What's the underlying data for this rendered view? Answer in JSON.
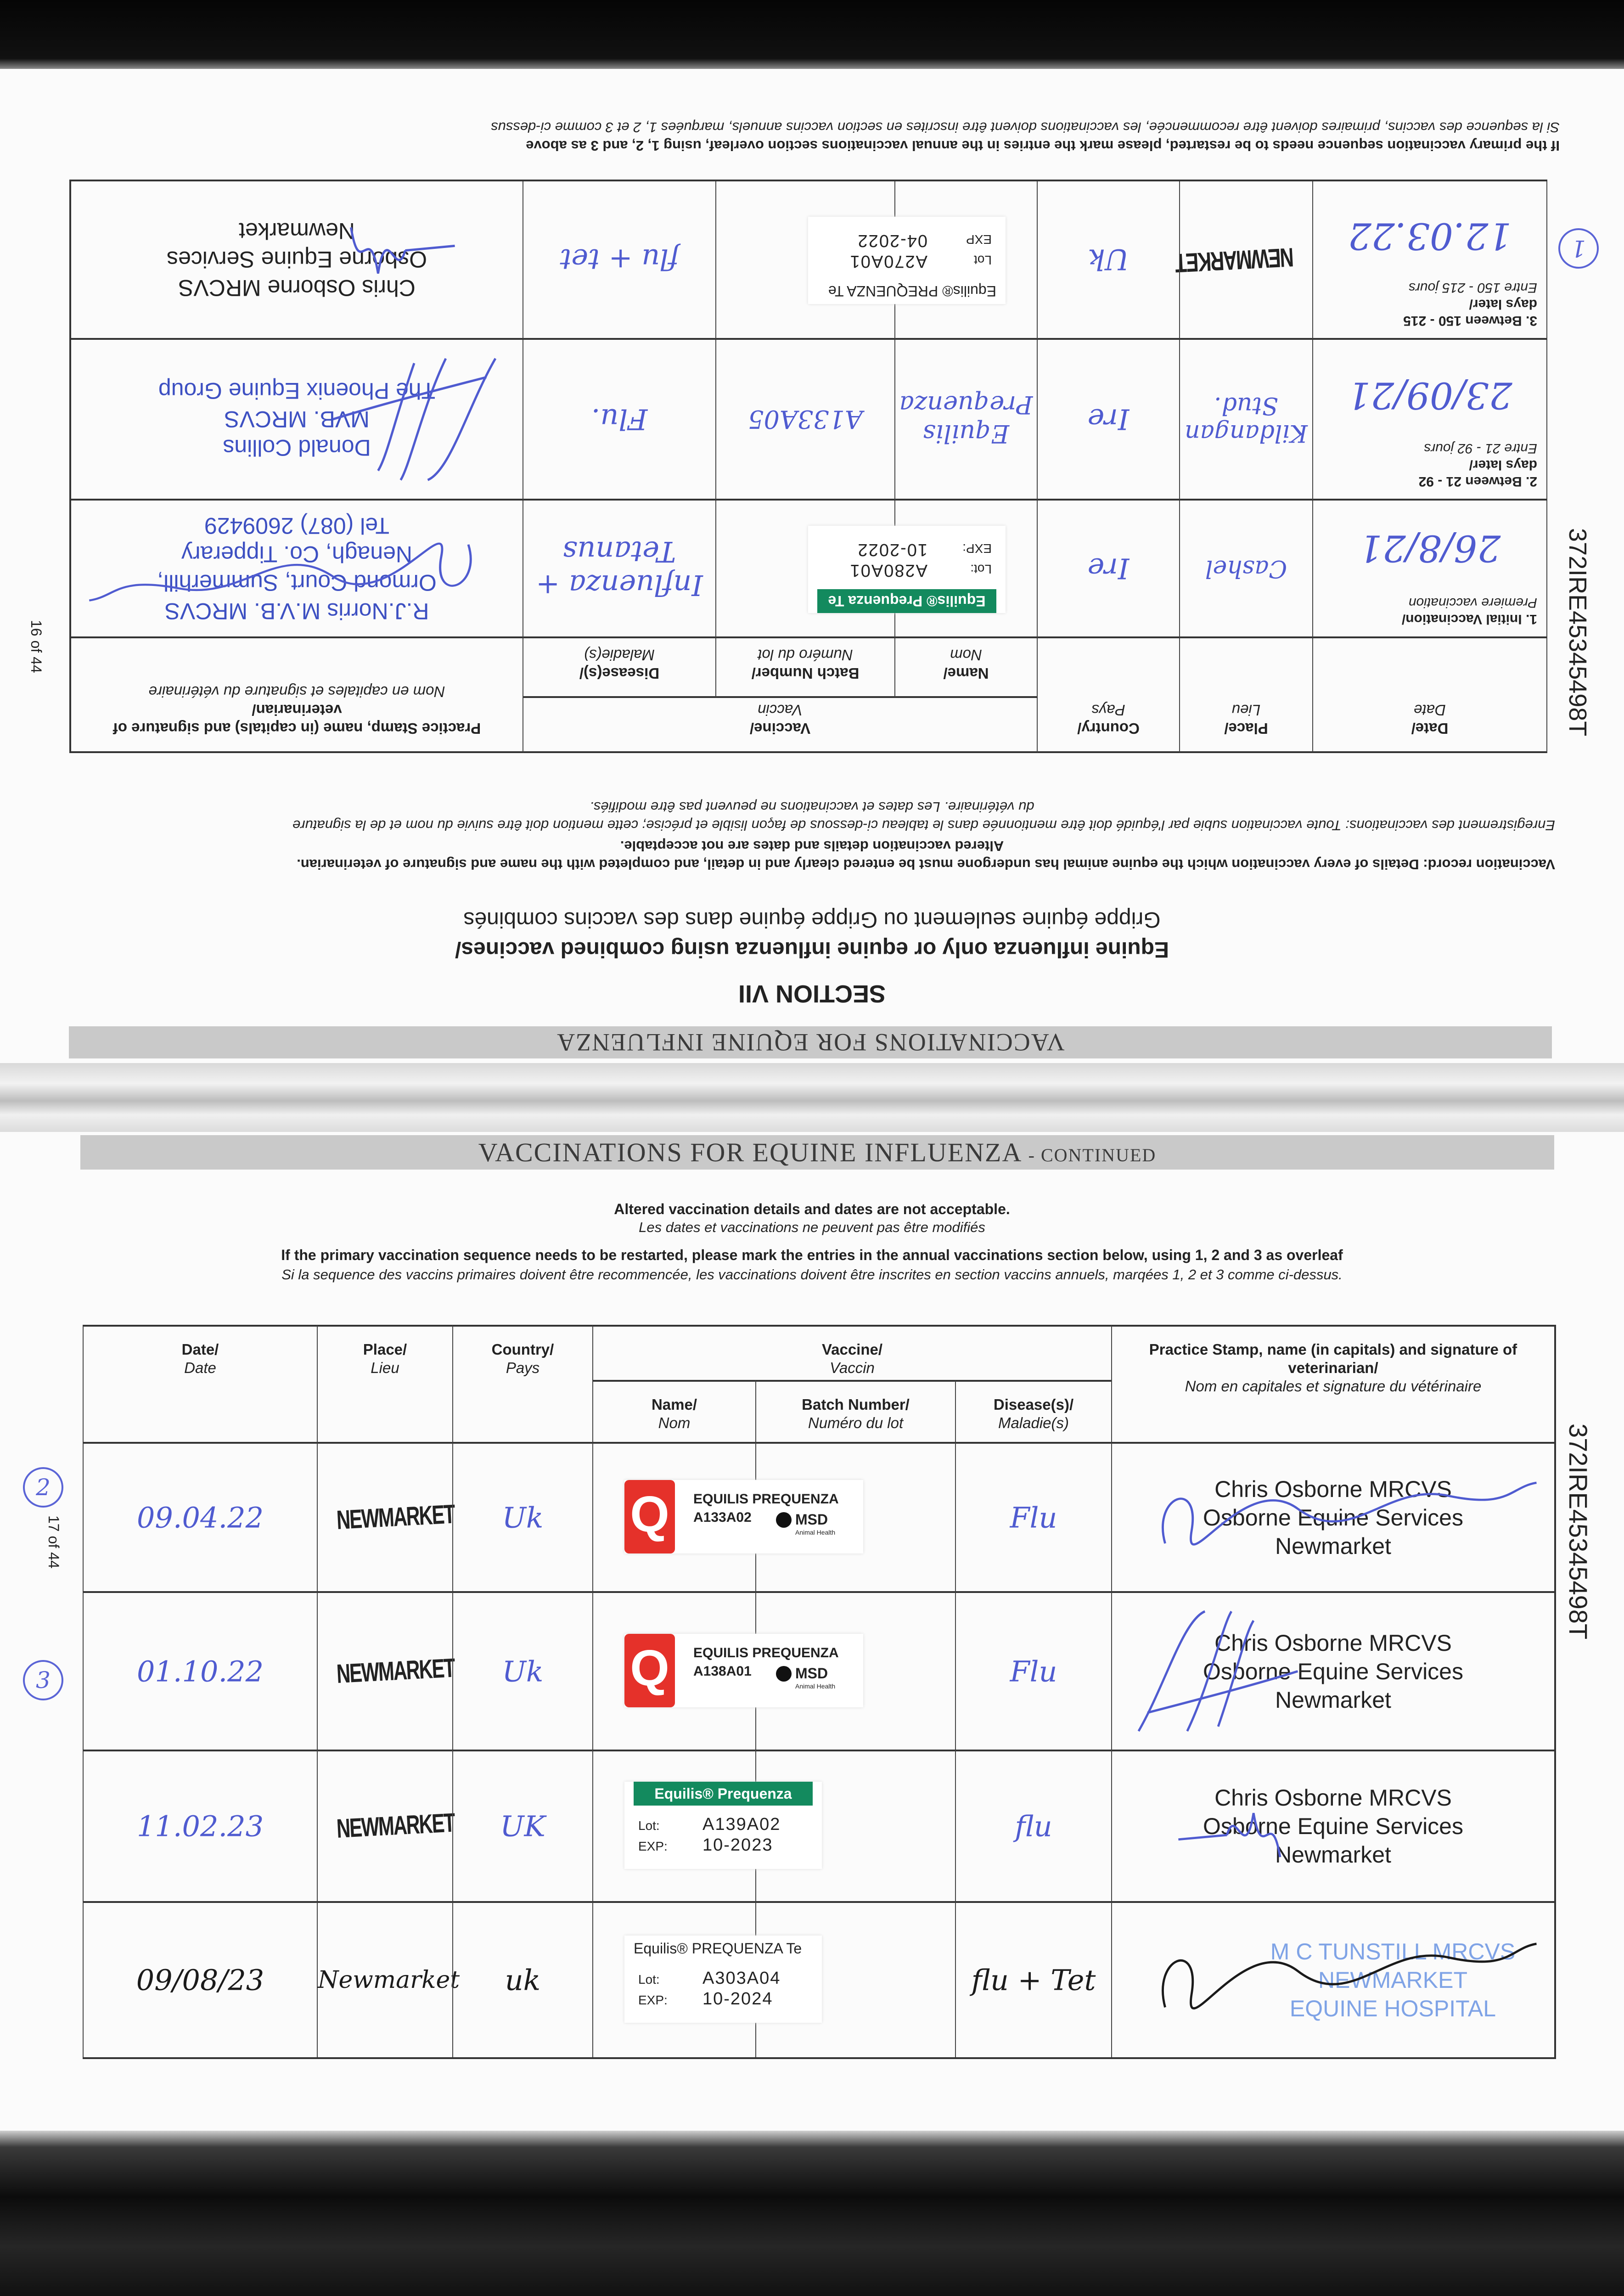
{
  "document": {
    "ink_blue": "#4f5bd0",
    "ink_black": "#1a1a1a",
    "banner_gray": "#c9c9c9"
  },
  "top_page": {
    "banner": "VACCINATIONS FOR EQUINE INFLUENZA",
    "section": "SECTION VII",
    "title": "Equine influenza only or equine influenza using combined vaccines/",
    "title_fr": "Grippe équine seulement ou Grippe équine dans des vaccins combinés",
    "record_en": "Vaccination record: Details of every vaccination which the equine animal has undergone must be entered clearly and in detail, and completed with the name and signature of veterinarian.",
    "altered": "Altered vaccination details and dates are not acceptable.",
    "record_fr_1": "Enregistrement des vaccinations: Toute vaccination subie par l'équidé doit être mentionnée dans le tableau ci-dessous de façon lisible et précise; cette mention doit être suivie du nom et de la signature",
    "record_fr_2": "du vétérinaire. Les dates et vaccinations ne peuvent pas être modifiés.",
    "restart_en": "If the primary vaccination sequence needs to be restarted, please mark the entries in the annual vaccinations section overleaf, using 1, 2, and 3 as above",
    "restart_fr": "Si la sequence des vaccins, primaires doivent être recommencée, les vaccinations doivent être inscrites en section vaccins annuels, marquées 1, 2 et 3 comme ci-dessus",
    "page_number": "16 of 44",
    "passport_id": "372IRE45345498T",
    "margin_mark": "1",
    "headers": {
      "date": "Date/",
      "date_fr": "Date",
      "place": "Place/",
      "place_fr": "Lieu",
      "country": "Country/",
      "country_fr": "Pays",
      "vaccine": "Vaccine/",
      "vaccine_fr": "Vaccin",
      "name": "Name/",
      "name_fr": "Nom",
      "batch": "Batch Number/",
      "batch_fr": "Numéro du lot",
      "disease": "Disease(s)/",
      "disease_fr": "Maladie(s)",
      "practice": "Practice Stamp, name (in capitals) and signature of veterinarian/",
      "practice_fr": "Nom en capitales et signature du vétérinaire"
    },
    "rows": [
      {
        "label": "1. Initial Vaccination/",
        "label_2": "",
        "label_fr": "Premiere vaccination",
        "date": "26/8/21",
        "place": "Cashel",
        "country": "Ire",
        "name": "",
        "batch": "",
        "sticker": {
          "style": "green",
          "brand": "Equilis® Prequenza Te",
          "lot_label": "Lot:",
          "lot": "A280A01",
          "exp_label": "EXP:",
          "exp": "10-2022"
        },
        "disease": "Influenza + Tetanus",
        "stamp": [
          "R.J.Norris M.V.B. MRCVS",
          "Ormond Court, Summerhill,",
          "Nenagh, Co. Tipperary",
          "Tel (087) 2609429"
        ],
        "stamp_color": "#3d50c2",
        "ink": "#4f5bd0",
        "place_style": "hand"
      },
      {
        "label": "2. Between 21 - 92",
        "label_2": "days later/",
        "label_fr": "Entre 21 - 92 jours",
        "date": "23/09/21",
        "place": "Kildangan Stud.",
        "country": "Ire",
        "name": "Equilis Prequenza",
        "batch": "A133A05",
        "sticker": null,
        "disease": "Flu.",
        "stamp": [
          "Donald Collins",
          "MVB. MRCVS",
          "The Phoenix Equine Group"
        ],
        "stamp_color": "#3d50c2",
        "ink": "#4f5bd0",
        "place_style": "hand"
      },
      {
        "label": "3. Between 150 - 215",
        "label_2": "days later/",
        "label_fr": "Entre 150 - 215 jours",
        "date": "12.03.22",
        "place": "NEWMARKET",
        "country": "Uk",
        "name": "",
        "batch": "",
        "sticker": {
          "style": "plain",
          "brand": "Equilis® PREQUENZA Te",
          "lot_label": "Lot",
          "lot": "A270A01",
          "exp_label": "EXP",
          "exp": "04-2022"
        },
        "disease": "flu + tet",
        "stamp": [
          "Chris Osborne MRCVS",
          "Osborne Equine Services",
          "Newmarket"
        ],
        "stamp_color": "#222222",
        "ink": "#4f5bd0",
        "place_style": "stamp"
      }
    ]
  },
  "bottom_page": {
    "banner": "VACCINATIONS FOR EQUINE INFLUENZA",
    "banner_suffix": "- CONTINUED",
    "altered": "Altered vaccination details and dates are not acceptable.",
    "altered_fr": "Les dates et vaccinations ne peuvent pas être modifiés",
    "restart_en": "If the primary vaccination sequence needs to be restarted, please mark the entries in the annual vaccinations section below, using 1, 2 and 3 as overleaf",
    "restart_fr": "Si la sequence des vaccins primaires doivent être recommencée, les vaccinations doivent être inscrites en section vaccins annuels, marqées 1, 2 et 3 comme ci-dessus.",
    "page_number": "17 of 44",
    "passport_id": "372IRE45345498T",
    "headers": {
      "date": "Date/",
      "date_fr": "Date",
      "place": "Place/",
      "place_fr": "Lieu",
      "country": "Country/",
      "country_fr": "Pays",
      "vaccine": "Vaccine/",
      "vaccine_fr": "Vaccin",
      "name": "Name/",
      "name_fr": "Nom",
      "batch": "Batch Number/",
      "batch_fr": "Numéro du lot",
      "disease": "Disease(s)/",
      "disease_fr": "Maladie(s)",
      "practice": "Practice Stamp, name (in capitals) and signature of veterinarian/",
      "practice_fr": "Nom en capitales et signature du vétérinaire"
    },
    "rows": [
      {
        "mark": "2",
        "date": "09.04.22",
        "place": "NEWMARKET",
        "country": "Uk",
        "sticker": {
          "style": "msd",
          "brand": "EQUILIS PREQUENZA",
          "lot": "A133A02",
          "maker": "MSD",
          "maker_sub": "Animal Health"
        },
        "disease": "Flu",
        "stamp": [
          "Chris Osborne MRCVS",
          "Osborne Equine Services",
          "Newmarket"
        ],
        "stamp_color": "#222222",
        "ink": "#4f5bd0",
        "place_style": "stamp"
      },
      {
        "mark": "3",
        "date": "01.10.22",
        "place": "NEWMARKET",
        "country": "Uk",
        "sticker": {
          "style": "msd",
          "brand": "EQUILIS PREQUENZA",
          "lot": "A138A01",
          "maker": "MSD",
          "maker_sub": "Animal Health"
        },
        "disease": "Flu",
        "stamp": [
          "Chris Osborne MRCVS",
          "Osborne Equine Services",
          "Newmarket"
        ],
        "stamp_color": "#222222",
        "ink": "#4f5bd0",
        "place_style": "stamp"
      },
      {
        "mark": "",
        "date": "11.02.23",
        "place": "NEWMARKET",
        "country": "UK",
        "sticker": {
          "style": "green",
          "brand": "Equilis® Prequenza",
          "lot_label": "Lot:",
          "lot": "A139A02",
          "exp_label": "EXP:",
          "exp": "10-2023"
        },
        "disease": "flu",
        "stamp": [
          "Chris Osborne MRCVS",
          "Osborne Equine Services",
          "Newmarket"
        ],
        "stamp_color": "#222222",
        "ink": "#4f5bd0",
        "place_style": "stamp"
      },
      {
        "mark": "",
        "date": "09/08/23",
        "place": "Newmarket",
        "country": "uk",
        "sticker": {
          "style": "plain",
          "brand": "Equilis® PREQUENZA Te",
          "lot_label": "Lot:",
          "lot": "A303A04",
          "exp_label": "EXP:",
          "exp": "10-2024"
        },
        "disease": "flu + Tet",
        "stamp": [
          "M C TUNSTILL MRCVS",
          "NEWMARKET",
          "EQUINE HOSPITAL"
        ],
        "stamp_color": "#7fa3e6",
        "ink": "#1a1a1a",
        "place_style": "hand"
      }
    ]
  }
}
